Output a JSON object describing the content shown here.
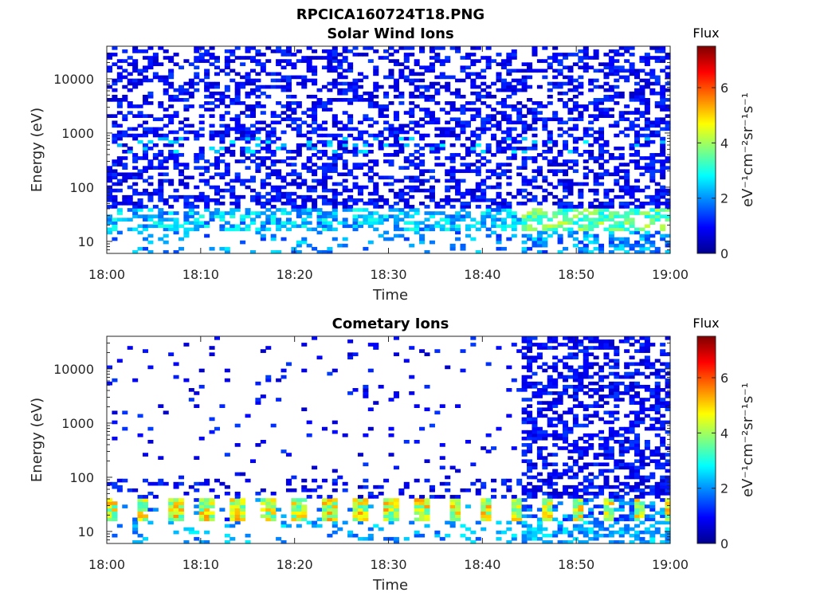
{
  "figure": {
    "filename_title": "RPCICA160724T18.PNG"
  },
  "chart_data": [
    {
      "type": "heatmap",
      "title": "Solar Wind Ions",
      "xlabel": "Time",
      "ylabel": "Energy (eV)",
      "x_ticks": [
        "18:00",
        "18:10",
        "18:20",
        "18:30",
        "18:40",
        "18:50",
        "19:00"
      ],
      "x_range": [
        "18:00",
        "19:00"
      ],
      "y_scale": "log",
      "y_range": [
        6,
        40000
      ],
      "y_ticks": [
        10,
        100,
        1000,
        10000
      ],
      "y_tick_labels": [
        "10",
        "100",
        "1000",
        "10000"
      ],
      "colorbar": {
        "title": "Flux",
        "label": "eV⁻¹cm⁻²sr⁻¹s⁻¹",
        "range": [
          0,
          7.5
        ],
        "ticks": [
          0,
          2,
          4,
          6
        ],
        "colormap": "jet"
      },
      "grid": false,
      "description_of_values": "Sparse noise-dominated counts (flux ~0-1) from ~100 eV to 40 keV; a weak band ~2.5 near 600 eV; strongest cells (~3-4.5) near 20-30 eV, especially after 18:44"
    },
    {
      "type": "heatmap",
      "title": "Cometary Ions",
      "xlabel": "Time",
      "ylabel": "Energy (eV)",
      "x_ticks": [
        "18:00",
        "18:10",
        "18:20",
        "18:30",
        "18:40",
        "18:50",
        "19:00"
      ],
      "x_range": [
        "18:00",
        "19:00"
      ],
      "y_scale": "log",
      "y_range": [
        6,
        40000
      ],
      "y_ticks": [
        10,
        100,
        1000,
        10000
      ],
      "y_tick_labels": [
        "10",
        "100",
        "1000",
        "10000"
      ],
      "colorbar": {
        "title": "Flux",
        "label": "eV⁻¹cm⁻²sr⁻¹s⁻¹",
        "range": [
          0,
          7.5
        ],
        "ticks": [
          0,
          2,
          4,
          6
        ],
        "colormap": "jet"
      },
      "grid": false,
      "description_of_values": "Periodic bright bursts (flux ~4-5.5) at 20-35 eV roughly every 3.3 min; sparse low counts above 100 eV before 18:44; dense low-level counts from 100 eV to 40 keV after 18:44"
    }
  ]
}
